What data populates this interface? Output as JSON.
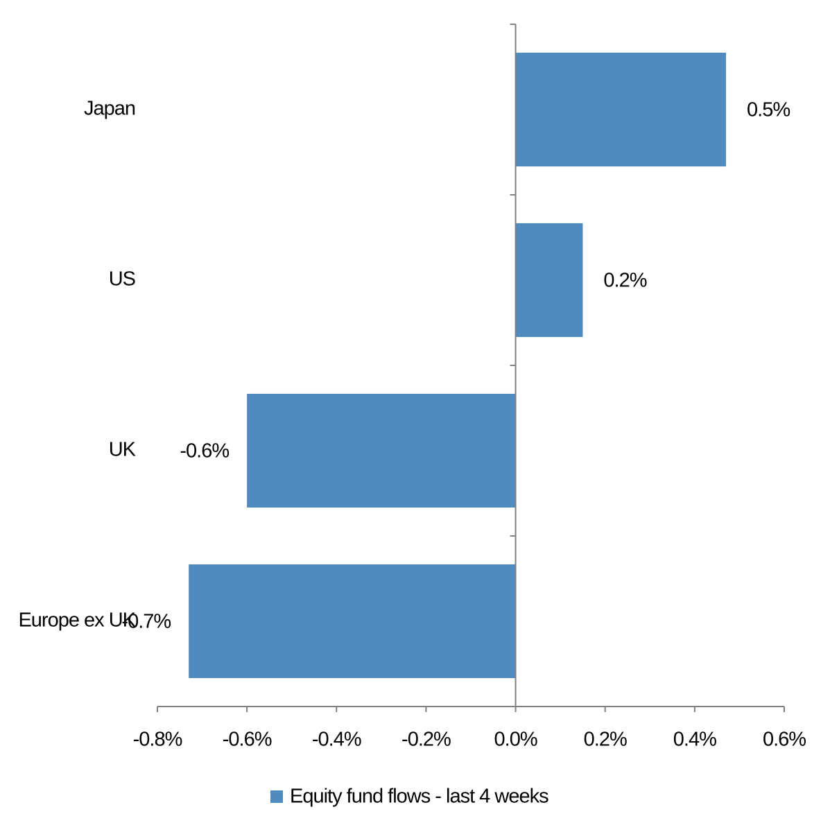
{
  "chart_data": {
    "type": "bar",
    "orientation": "horizontal",
    "categories": [
      "Japan",
      "US",
      "UK",
      "Europe ex UK"
    ],
    "series": [
      {
        "name": "Equity fund flows - last 4 weeks",
        "color": "#4f8bbf",
        "values": [
          0.47,
          0.15,
          -0.6,
          -0.73
        ],
        "value_labels": [
          "0.5%",
          "0.2%",
          "-0.6%",
          "-0.7%"
        ]
      }
    ],
    "xlim": [
      -0.8,
      0.6
    ],
    "xticks": [
      {
        "value": -0.8,
        "label": "-0.8%"
      },
      {
        "value": -0.6,
        "label": "-0.6%"
      },
      {
        "value": -0.4,
        "label": "-0.4%"
      },
      {
        "value": -0.2,
        "label": "-0.2%"
      },
      {
        "value": 0,
        "label": "0.0%"
      },
      {
        "value": 0.2,
        "label": "0.2%"
      },
      {
        "value": 0.4,
        "label": "0.4%"
      },
      {
        "value": 0.6,
        "label": "0.6%"
      }
    ],
    "legend": "bottom"
  }
}
